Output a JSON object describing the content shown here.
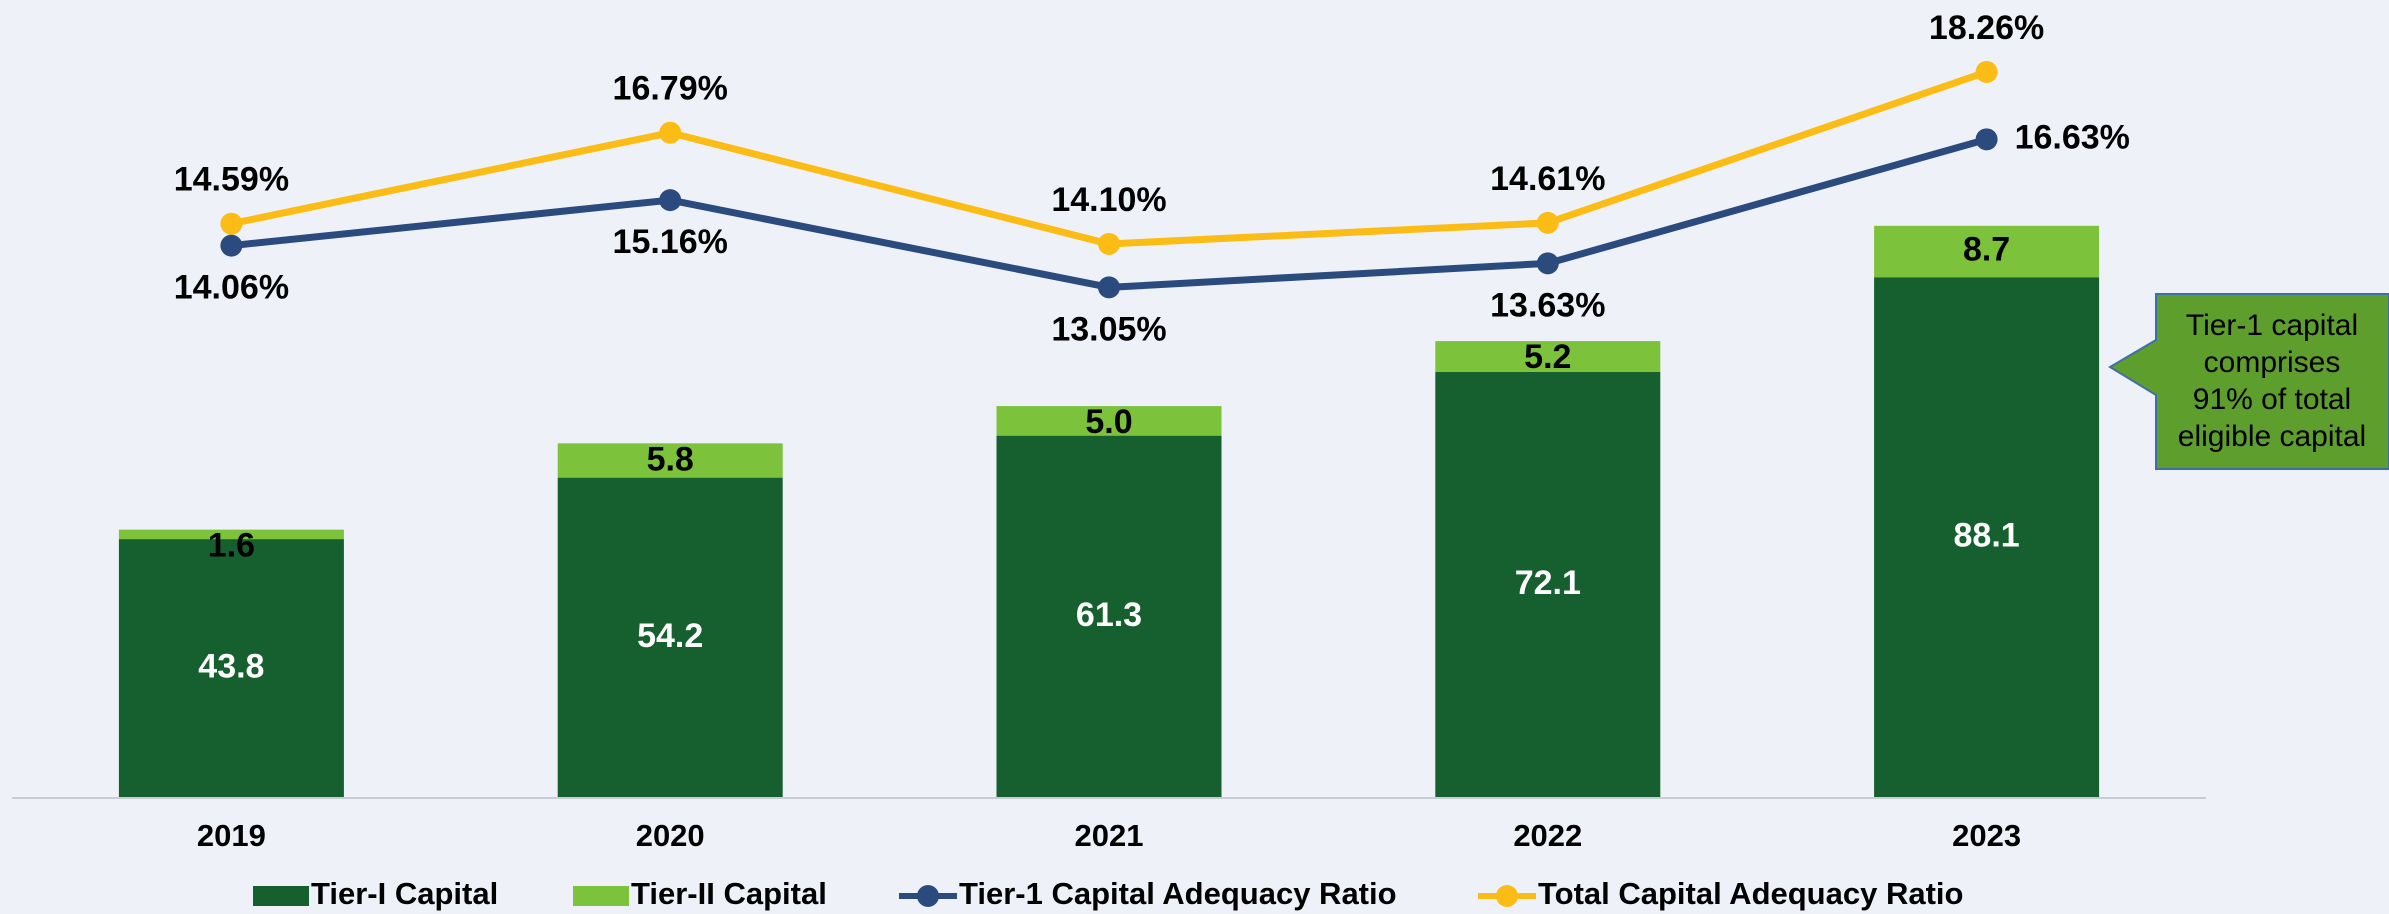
{
  "chart_data": {
    "type": "bar",
    "stacked": true,
    "categories": [
      "2019",
      "2020",
      "2021",
      "2022",
      "2023"
    ],
    "series": [
      {
        "name": "Tier-I Capital",
        "type": "bar",
        "color": "#15602e",
        "values": [
          43.8,
          54.2,
          61.3,
          72.1,
          88.1
        ],
        "value_labels": [
          "43.8",
          "54.2",
          "61.3",
          "72.1",
          "88.1"
        ]
      },
      {
        "name": "Tier-II Capital",
        "type": "bar",
        "color": "#7cc23a",
        "values": [
          1.6,
          5.8,
          5.0,
          5.2,
          8.7
        ],
        "value_labels": [
          "1.6",
          "5.8",
          "5.0",
          "5.2",
          "8.7"
        ]
      },
      {
        "name": "Tier-1 Capital Adequacy Ratio",
        "type": "line",
        "axis": "y2",
        "color": "#2b4a7e",
        "values": [
          14.06,
          15.16,
          13.05,
          13.63,
          16.63
        ],
        "value_labels": [
          "14.06%",
          "15.16%",
          "13.05%",
          "13.63%",
          "16.63%"
        ]
      },
      {
        "name": "Total Capital Adequacy Ratio",
        "type": "line",
        "axis": "y2",
        "color": "#fbbd15",
        "values": [
          14.59,
          16.79,
          14.1,
          14.61,
          18.26
        ],
        "value_labels": [
          "14.59%",
          "16.79%",
          "14.10%",
          "14.61%",
          "18.26%"
        ]
      }
    ],
    "ylim": [
      0,
      135
    ],
    "y2lim": [
      0.7,
      20
    ],
    "annotation": [
      "Tier-1 capital",
      "comprises",
      "91% of total",
      "eligible capital"
    ],
    "legend": "bottom"
  }
}
